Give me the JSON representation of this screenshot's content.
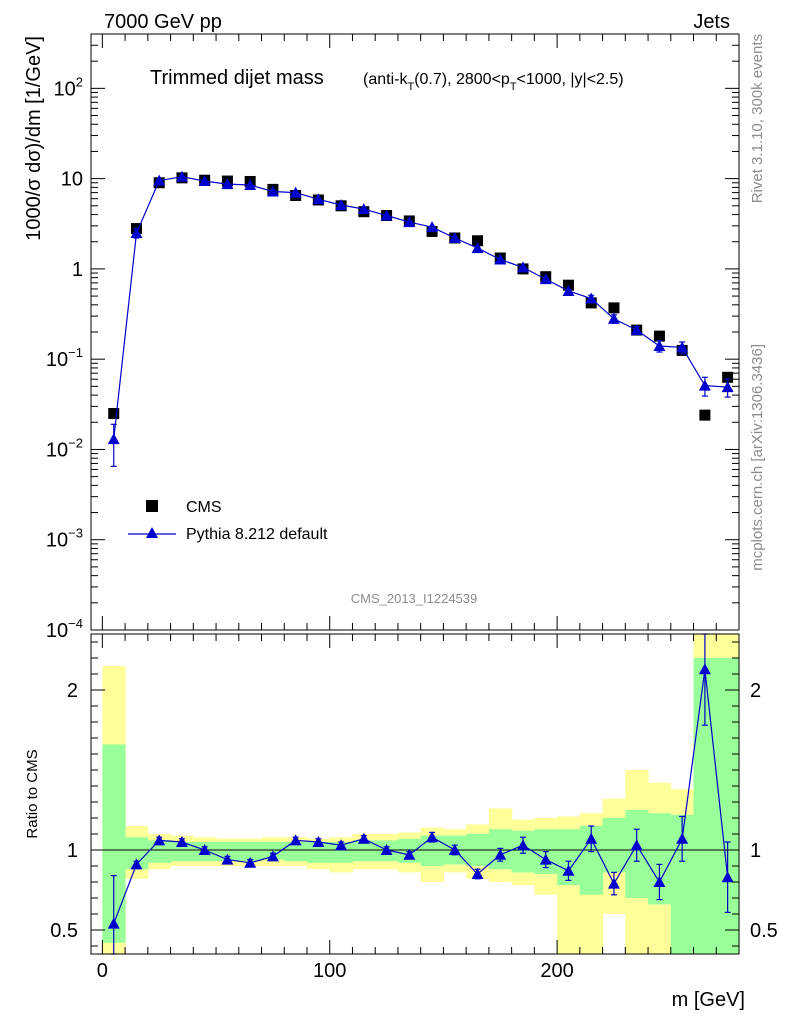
{
  "header": {
    "left": "7000 GeV pp",
    "right": "Jets"
  },
  "side_labels": {
    "rivet": "Rivet 3.1.10,  300k events",
    "mcplots": "mcplots.cern.ch [arXiv:1306.3436]"
  },
  "chart_data": [
    {
      "type": "scatter",
      "panel": "main",
      "title_main": "Trimmed dijet mass",
      "title_sub": "(anti-k_T(0.7), 2800<p_T<1000, |y|<2.5)",
      "title_parts": {
        "p1": "(anti-k",
        "s1": "T",
        "p2": "(0.7), 2800<p",
        "s2": "T",
        "p3": "<1000, |y|<2.5)"
      },
      "ylabel": "1000/σ dσ)/dm [1/GeV]",
      "yscale": "log",
      "ylim": [
        0.0001,
        400
      ],
      "xlim": [
        -5,
        280
      ],
      "y_ticks": [
        {
          "value": 100,
          "base": "10",
          "exp": "2"
        },
        {
          "value": 10,
          "base": "10",
          "exp": ""
        },
        {
          "value": 1,
          "base": "1",
          "exp": ""
        },
        {
          "value": 0.1,
          "base": "10",
          "exp": "−1"
        },
        {
          "value": 0.01,
          "base": "10",
          "exp": "−2"
        },
        {
          "value": 0.001,
          "base": "10",
          "exp": "−3"
        },
        {
          "value": 0.0001,
          "base": "10",
          "exp": "−4"
        }
      ],
      "watermark": "CMS_2013_I1224539",
      "legend_position": "bottom-left",
      "legend": {
        "cms": "CMS",
        "pythia": "Pythia 8.212 default"
      },
      "x": [
        5,
        15,
        25,
        35,
        45,
        55,
        65,
        75,
        85,
        95,
        105,
        115,
        125,
        135,
        145,
        155,
        165,
        175,
        185,
        195,
        205,
        215,
        225,
        235,
        245,
        255,
        265,
        275
      ],
      "series": [
        {
          "name": "CMS",
          "marker": "square",
          "values": [
            0.025,
            2.8,
            9.0,
            10.2,
            9.6,
            9.4,
            9.3,
            7.6,
            6.5,
            5.8,
            5.0,
            4.3,
            3.9,
            3.4,
            2.6,
            2.2,
            2.05,
            1.32,
            1.0,
            0.82,
            0.66,
            0.42,
            0.37,
            0.21,
            0.18,
            0.125,
            0.024,
            0.063
          ]
        },
        {
          "name": "Pythia 8.212 default",
          "marker": "triangle",
          "color": "#0000cc",
          "values": [
            0.013,
            2.5,
            9.5,
            10.5,
            9.4,
            8.7,
            8.5,
            7.2,
            7.0,
            5.9,
            5.1,
            4.6,
            3.9,
            3.3,
            2.9,
            2.2,
            1.7,
            1.27,
            1.04,
            0.77,
            0.57,
            0.47,
            0.28,
            0.21,
            0.14,
            0.135,
            0.051,
            0.049
          ],
          "err_low": [
            0.0065,
            0.3,
            0.4,
            0.4,
            0.3,
            0.3,
            0.3,
            0.25,
            0.25,
            0.2,
            0.2,
            0.15,
            0.15,
            0.12,
            0.1,
            0.1,
            0.08,
            0.06,
            0.05,
            0.05,
            0.04,
            0.04,
            0.03,
            0.02,
            0.02,
            0.02,
            0.012,
            0.011
          ],
          "err_high": [
            0.006,
            0.3,
            0.4,
            0.4,
            0.3,
            0.3,
            0.3,
            0.25,
            0.25,
            0.2,
            0.2,
            0.15,
            0.15,
            0.12,
            0.1,
            0.1,
            0.08,
            0.06,
            0.05,
            0.05,
            0.04,
            0.04,
            0.03,
            0.02,
            0.02,
            0.02,
            0.012,
            0.011
          ]
        }
      ]
    },
    {
      "type": "line",
      "panel": "ratio",
      "ylabel": "Ratio to CMS",
      "xlabel": "m [GeV]",
      "ylim": [
        0.35,
        2.35
      ],
      "xlim": [
        -5,
        280
      ],
      "x_ticks": [
        0,
        100,
        200
      ],
      "y_ticks": [
        0.5,
        1,
        2
      ],
      "bands": {
        "edges": [
          0,
          10,
          20,
          30,
          40,
          50,
          60,
          70,
          80,
          90,
          100,
          110,
          120,
          130,
          140,
          150,
          160,
          170,
          180,
          190,
          200,
          210,
          220,
          230,
          240,
          250,
          260,
          270,
          280
        ],
        "yellow_low": [
          0.35,
          0.82,
          0.88,
          0.9,
          0.9,
          0.9,
          0.9,
          0.9,
          0.9,
          0.88,
          0.86,
          0.88,
          0.88,
          0.86,
          0.8,
          0.86,
          0.82,
          0.8,
          0.78,
          0.72,
          0.35,
          0.35,
          0.6,
          0.35,
          0.35,
          0.35,
          0.35,
          0.35
        ],
        "yellow_high": [
          2.15,
          1.15,
          1.1,
          1.09,
          1.08,
          1.07,
          1.07,
          1.08,
          1.08,
          1.07,
          1.08,
          1.1,
          1.1,
          1.11,
          1.14,
          1.13,
          1.16,
          1.26,
          1.19,
          1.2,
          1.21,
          1.23,
          1.32,
          1.5,
          1.42,
          1.38,
          2.35,
          2.35
        ],
        "green_low": [
          0.42,
          0.88,
          0.92,
          0.93,
          0.93,
          0.93,
          0.93,
          0.94,
          0.93,
          0.92,
          0.92,
          0.93,
          0.93,
          0.92,
          0.9,
          0.91,
          0.9,
          0.88,
          0.86,
          0.85,
          0.78,
          0.72,
          0.86,
          0.7,
          0.66,
          0.35,
          0.35,
          0.35
        ],
        "green_high": [
          1.66,
          1.08,
          1.06,
          1.05,
          1.05,
          1.05,
          1.05,
          1.05,
          1.05,
          1.05,
          1.05,
          1.06,
          1.06,
          1.07,
          1.09,
          1.09,
          1.1,
          1.13,
          1.12,
          1.13,
          1.13,
          1.15,
          1.2,
          1.25,
          1.23,
          1.22,
          2.2,
          2.2
        ]
      },
      "series": [
        {
          "name": "Pythia 8.212 default / CMS",
          "marker": "triangle",
          "color": "#0000cc",
          "values": [
            0.54,
            0.91,
            1.06,
            1.05,
            1.0,
            0.94,
            0.92,
            0.96,
            1.06,
            1.05,
            1.03,
            1.07,
            1.0,
            0.97,
            1.08,
            1.0,
            0.85,
            0.97,
            1.03,
            0.94,
            0.87,
            1.07,
            0.79,
            1.03,
            0.8,
            1.07,
            2.13,
            0.83
          ],
          "err_low": [
            0.19,
            0.02,
            0.02,
            0.02,
            0.02,
            0.02,
            0.02,
            0.02,
            0.02,
            0.02,
            0.02,
            0.02,
            0.02,
            0.02,
            0.03,
            0.03,
            0.03,
            0.04,
            0.05,
            0.05,
            0.06,
            0.08,
            0.07,
            0.1,
            0.11,
            0.14,
            0.35,
            0.22
          ],
          "err_high": [
            0.3,
            0.02,
            0.02,
            0.02,
            0.02,
            0.02,
            0.02,
            0.02,
            0.02,
            0.02,
            0.02,
            0.02,
            0.02,
            0.02,
            0.03,
            0.03,
            0.03,
            0.04,
            0.05,
            0.05,
            0.06,
            0.08,
            0.07,
            0.1,
            0.11,
            0.14,
            0.25,
            0.22
          ]
        }
      ]
    }
  ]
}
